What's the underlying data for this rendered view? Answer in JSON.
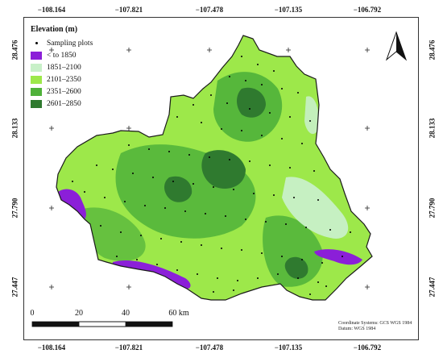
{
  "map": {
    "top_ticks": [
      "−108.164",
      "−107.821",
      "−107.478",
      "−107.135",
      "−106.792"
    ],
    "bottom_ticks": [
      "−108.164",
      "−107.821",
      "−107.478",
      "−107.135",
      "−106.792"
    ],
    "left_ticks": [
      "28.476",
      "28.133",
      "27.790",
      "27.447"
    ],
    "right_ticks": [
      "28.476",
      "28.133",
      "27.790",
      "27.447"
    ]
  },
  "legend": {
    "title": "Elevation (m)",
    "points_label": "Sampling plots",
    "classes": [
      {
        "label": "< to 1850",
        "color": "#8b1fd8"
      },
      {
        "label": "1851–2100",
        "color": "#c8f0c8"
      },
      {
        "label": "2101–2350",
        "color": "#9de84a"
      },
      {
        "label": "2351–2600",
        "color": "#4fb13a"
      },
      {
        "label": "2601–2850",
        "color": "#2f7a2f"
      }
    ]
  },
  "scale_bar": {
    "labels": [
      "0",
      "20",
      "40",
      "60 km"
    ]
  },
  "coordinate_note": {
    "line1": "Coordinate Systems: GCS WGS 1984",
    "line2": "Datum: WGS 1984"
  },
  "north_arrow": {
    "icon": "north-arrow-icon"
  },
  "colors": {
    "boundary": "#1a1a1a",
    "frame": "#333333"
  }
}
